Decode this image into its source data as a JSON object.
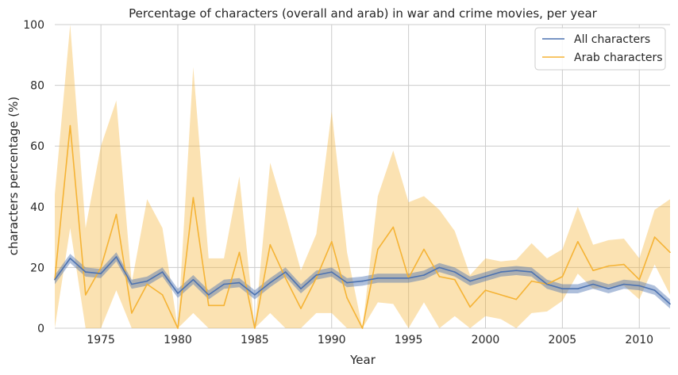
{
  "chart_data": {
    "type": "line",
    "title": "Percentage of characters (overall and arab) in war and crime movies, per year",
    "xlabel": "Year",
    "ylabel": "characters percentage (%)",
    "xlim": [
      1972,
      2012
    ],
    "ylim": [
      0,
      100
    ],
    "xticks": [
      1975,
      1980,
      1985,
      1990,
      1995,
      2000,
      2005,
      2010
    ],
    "yticks": [
      0,
      20,
      40,
      60,
      80,
      100
    ],
    "grid": true,
    "legend": "top-right",
    "x": [
      1972,
      1973,
      1974,
      1975,
      1976,
      1977,
      1978,
      1979,
      1980,
      1981,
      1982,
      1983,
      1984,
      1985,
      1986,
      1987,
      1988,
      1989,
      1990,
      1991,
      1992,
      1993,
      1994,
      1995,
      1996,
      1997,
      1998,
      1999,
      2000,
      2001,
      2002,
      2003,
      2004,
      2005,
      2006,
      2007,
      2008,
      2009,
      2010,
      2011,
      2012
    ],
    "series": [
      {
        "name": "All characters",
        "color": "#4c72b0",
        "values": [
          16,
          23,
          18.5,
          18,
          23.5,
          14.5,
          15.5,
          18.5,
          11.5,
          16,
          11,
          14.5,
          15,
          11,
          15,
          18.5,
          13,
          17.5,
          18.5,
          15,
          15.5,
          16.5,
          16.5,
          16.5,
          17.5,
          20,
          18.5,
          15.5,
          17,
          18.5,
          19,
          18.5,
          14.5,
          13,
          13,
          14.5,
          13,
          14.5,
          14,
          12.5,
          8
        ],
        "lower": [
          14.5,
          21.5,
          17,
          16.5,
          22,
          13,
          14,
          17,
          10,
          14.5,
          9.5,
          13,
          13.5,
          9.5,
          13.5,
          17,
          11.5,
          16,
          17,
          13.5,
          14,
          15,
          15,
          15,
          16,
          18.5,
          17,
          14,
          15.5,
          17,
          17.5,
          17,
          13,
          11.5,
          11.5,
          13,
          11.5,
          13,
          12.5,
          11,
          6.5
        ],
        "upper": [
          17.5,
          24.5,
          20,
          19.5,
          25,
          16,
          17,
          20,
          13,
          17.5,
          12.5,
          16,
          16.5,
          12.5,
          16.5,
          20,
          14.5,
          19,
          20,
          16.5,
          17,
          18,
          18,
          18,
          19,
          21.5,
          20,
          17,
          18.5,
          20,
          20.5,
          20,
          16,
          14.5,
          14.5,
          16,
          14.5,
          16,
          15.5,
          14,
          9.5
        ]
      },
      {
        "name": "Arab characters",
        "color": "#f5b335",
        "values": [
          16,
          66.7,
          11,
          20,
          37.5,
          5,
          14.5,
          11,
          0,
          43,
          7.5,
          7.5,
          25,
          0,
          27.5,
          16.5,
          6.5,
          16.5,
          28.5,
          10,
          0,
          26,
          33.3,
          16.5,
          26,
          17,
          16,
          7,
          12.5,
          11,
          9.5,
          15.5,
          14.5,
          17,
          28.5,
          19,
          20.5,
          21,
          16,
          30,
          25
        ],
        "lower": [
          0,
          33,
          0,
          0,
          12.5,
          0,
          0,
          0,
          0,
          5,
          0,
          0,
          0,
          0,
          5,
          0,
          0,
          5,
          5,
          0,
          0,
          8.5,
          8,
          0,
          8.5,
          0,
          4,
          0,
          4,
          3,
          0,
          5,
          5.5,
          9,
          18,
          13,
          13.5,
          14,
          9.5,
          21,
          11
        ],
        "upper": [
          44,
          100,
          33,
          60,
          75,
          15,
          42.5,
          33,
          0,
          86,
          23,
          23,
          50,
          0,
          54.5,
          37.5,
          19,
          31,
          71.5,
          25,
          0,
          43.5,
          58.5,
          41.5,
          43.5,
          39,
          32,
          17.5,
          23,
          22,
          22.5,
          28,
          23,
          26,
          40,
          27.5,
          29,
          29.5,
          23,
          39,
          42.5
        ]
      }
    ]
  }
}
